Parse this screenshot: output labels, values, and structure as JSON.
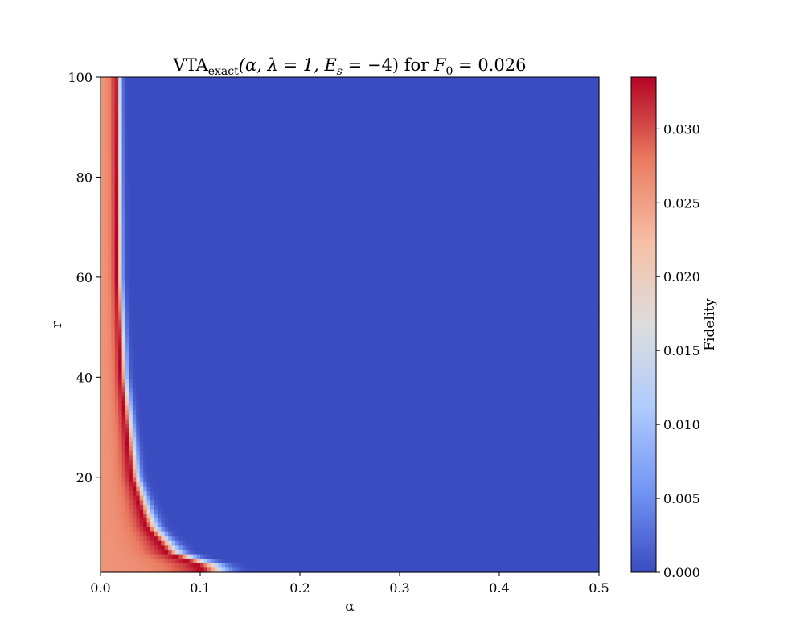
{
  "chart_data": {
    "type": "heatmap",
    "title": "VTA_exact(α, λ = 1, E_s = −4) for F_0 = 0.026",
    "title_parts": {
      "lead": "VTA",
      "sub": "exact",
      "args": "(α, λ = 1, E",
      "es_sub": "s",
      "rest": " = −4) for ",
      "f0": "F",
      "f0_sub": "0",
      "tail": " = 0.026"
    },
    "xlabel": "α",
    "ylabel": "r",
    "colorbar_label": "Fidelity",
    "xlim": [
      0.0,
      0.5
    ],
    "ylim": [
      1,
      100
    ],
    "xticks": [
      0.0,
      0.1,
      0.2,
      0.3,
      0.4,
      0.5
    ],
    "xtick_labels": [
      "0.0",
      "0.1",
      "0.2",
      "0.3",
      "0.4",
      "0.5"
    ],
    "yticks": [
      20,
      40,
      60,
      80,
      100
    ],
    "ytick_labels": [
      "20",
      "40",
      "60",
      "80",
      "100"
    ],
    "colorbar_range": [
      0.0,
      0.0335
    ],
    "colorbar_ticks": [
      0.0,
      0.005,
      0.01,
      0.015,
      0.02,
      0.025,
      0.03
    ],
    "colorbar_tick_labels": [
      "0.000",
      "0.005",
      "0.010",
      "0.015",
      "0.020",
      "0.025",
      "0.030"
    ],
    "colormap": "coolwarm",
    "colormap_stops": [
      "#3b4cc0",
      "#7396f5",
      "#b0cbfc",
      "#dddddd",
      "#f6bfa6",
      "#ea7b60",
      "#b40426"
    ],
    "ridge": {
      "description_free": true,
      "ridge_alpha_at_r": [
        {
          "r": 100,
          "alpha": 0.015
        },
        {
          "r": 60,
          "alpha": 0.016
        },
        {
          "r": 40,
          "alpha": 0.02
        },
        {
          "r": 20,
          "alpha": 0.03
        },
        {
          "r": 10,
          "alpha": 0.045
        },
        {
          "r": 5,
          "alpha": 0.065
        },
        {
          "r": 2,
          "alpha": 0.1
        }
      ],
      "peak_value": 0.0335,
      "left_edge_value": 0.026
    }
  }
}
